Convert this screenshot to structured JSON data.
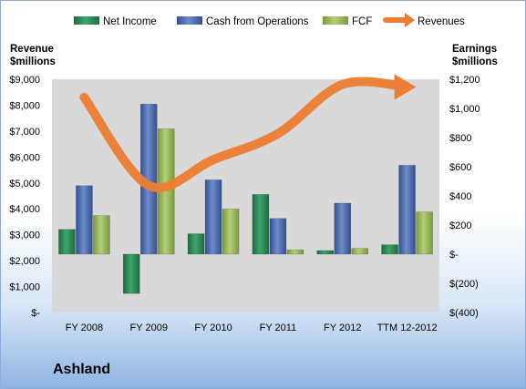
{
  "company": "Ashland",
  "legend": {
    "net_income": "Net Income",
    "cfo": "Cash from Operations",
    "fcf": "FCF",
    "revenues": "Revenues"
  },
  "axes": {
    "left_title_1": "Revenue",
    "left_title_2": "$millions",
    "right_title_1": "Earnings",
    "right_title_2": "$millions"
  },
  "colors": {
    "net_income": "#2e8b57",
    "cfo": "#4f6fb0",
    "fcf": "#9bbb59",
    "revenues": "#ed7d31",
    "plot_bg": "#d9d9d9"
  },
  "chart_data": {
    "type": "bar",
    "categories": [
      "FY 2008",
      "FY 2009",
      "FY 2010",
      "FY 2011",
      "FY 2012",
      "TTM 12-2012"
    ],
    "left_axis": {
      "ylim": [
        0,
        9000
      ],
      "ticks": [
        0,
        1000,
        2000,
        3000,
        4000,
        5000,
        6000,
        7000,
        8000,
        9000
      ],
      "tick_labels": [
        "$-",
        "$1,000",
        "$2,000",
        "$3,000",
        "$4,000",
        "$5,000",
        "$6,000",
        "$7,000",
        "$8,000",
        "$9,000"
      ]
    },
    "right_axis": {
      "ylim": [
        -400,
        1200
      ],
      "ticks": [
        -400,
        -200,
        0,
        200,
        400,
        600,
        800,
        1000,
        1200
      ],
      "tick_labels": [
        "$(400)",
        "$(200)",
        "$-",
        "$200",
        "$400",
        "$600",
        "$800",
        "$1,000",
        "$1,200"
      ]
    },
    "series": [
      {
        "name": "Net Income",
        "axis": "right",
        "type": "bar",
        "values": [
          170,
          -270,
          140,
          410,
          25,
          65
        ]
      },
      {
        "name": "Cash from Operations",
        "axis": "right",
        "type": "bar",
        "values": [
          470,
          1030,
          510,
          245,
          350,
          610
        ]
      },
      {
        "name": "FCF",
        "axis": "right",
        "type": "bar",
        "values": [
          265,
          860,
          310,
          30,
          40,
          290
        ]
      },
      {
        "name": "Revenues",
        "axis": "left",
        "type": "line",
        "values": [
          8300,
          4900,
          5900,
          6900,
          8800,
          8700
        ]
      }
    ],
    "grid": false,
    "legend_position": "top"
  }
}
